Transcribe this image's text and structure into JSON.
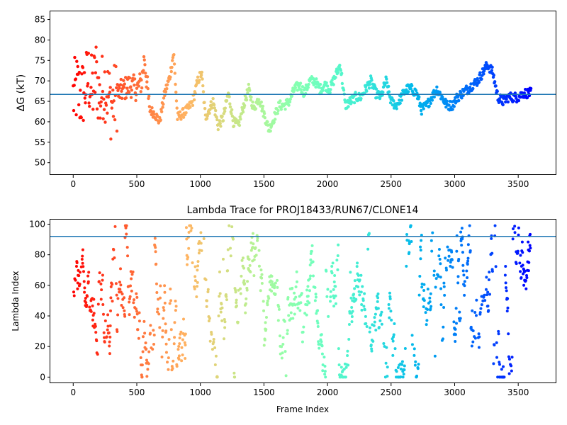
{
  "chart_data": [
    {
      "type": "scatter",
      "title": "",
      "xlabel": "",
      "ylabel": "ΔG (kT)",
      "xlim": [
        -180,
        3800
      ],
      "ylim": [
        47,
        87
      ],
      "xticks": [
        0,
        500,
        1000,
        1500,
        2000,
        2500,
        3000,
        3500
      ],
      "yticks": [
        50,
        55,
        60,
        65,
        70,
        75,
        80,
        85
      ],
      "hline": 66.7,
      "hline_color": "#1f77b4",
      "colormap": "rainbow (red at frame 0 to violet at frame 3600)",
      "series": [
        {
          "anchors_x": [
            0,
            30,
            60,
            90,
            120,
            150,
            180,
            210,
            240,
            270,
            300,
            330,
            360,
            400,
            450,
            500,
            540,
            560,
            600,
            640,
            680,
            720,
            760,
            790,
            820,
            860,
            900,
            940,
            980,
            1010,
            1040,
            1070,
            1100,
            1140,
            1180,
            1220,
            1260,
            1300,
            1340,
            1380,
            1420,
            1460,
            1500,
            1540,
            1580,
            1620,
            1660,
            1700,
            1740,
            1780,
            1820,
            1860,
            1900,
            1940,
            1980,
            2020,
            2060,
            2100,
            2140,
            2180,
            2220,
            2260,
            2300,
            2340,
            2380,
            2420,
            2460,
            2500,
            2540,
            2580,
            2620,
            2660,
            2700,
            2740,
            2780,
            2820,
            2860,
            2900,
            2940,
            2980,
            3020,
            3060,
            3100,
            3140,
            3180,
            3220,
            3260,
            3300,
            3340,
            3380,
            3420,
            3460,
            3500,
            3540,
            3580,
            3600
          ],
          "anchors_y": [
            66,
            68,
            66,
            68,
            71,
            67,
            72,
            65,
            70,
            67,
            64,
            66,
            67,
            68,
            69,
            68,
            70,
            76,
            63,
            62,
            60,
            67,
            71,
            77,
            61,
            62,
            63,
            65,
            70,
            72,
            61,
            63,
            65,
            59,
            61,
            67,
            60,
            59,
            64,
            68,
            63,
            66,
            62,
            58,
            61,
            64,
            64,
            65,
            68,
            69,
            67,
            70,
            70,
            68,
            69,
            68,
            71,
            74,
            64,
            65,
            66,
            66,
            68,
            70,
            67,
            66,
            70,
            65,
            64,
            66,
            68,
            68,
            67,
            63,
            64,
            66,
            68,
            66,
            64,
            64,
            66,
            67,
            68,
            69,
            70,
            72,
            74,
            72,
            66,
            65,
            66,
            66,
            66,
            67,
            67,
            67
          ]
        }
      ]
    },
    {
      "type": "scatter",
      "title": "Lambda Trace for PROJ18433/RUN67/CLONE14",
      "xlabel": "Frame Index",
      "ylabel": "Lambda Index",
      "xlim": [
        -180,
        3800
      ],
      "ylim": [
        -4,
        103
      ],
      "xticks": [
        0,
        500,
        1000,
        1500,
        2000,
        2500,
        3000,
        3500
      ],
      "yticks": [
        0,
        20,
        40,
        60,
        80,
        100
      ],
      "hline": 92,
      "hline_color": "#1f77b4",
      "colormap": "rainbow (red at frame 0 to violet at frame 3600)",
      "frame_range": [
        0,
        3600
      ],
      "lambda_range": [
        0,
        99
      ]
    }
  ]
}
